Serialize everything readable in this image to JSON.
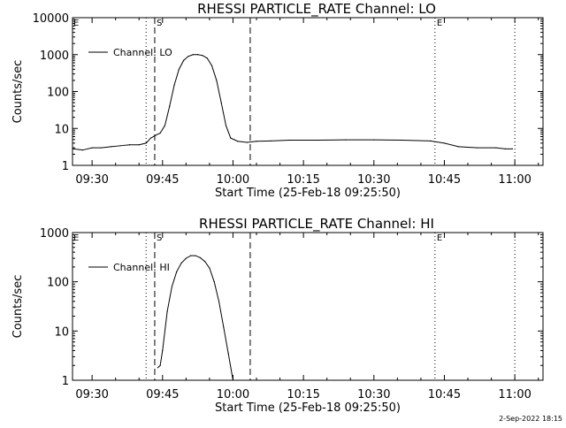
{
  "footer": {
    "timestamp": "2-Sep-2022 18:15"
  },
  "chart_data": [
    {
      "type": "line",
      "title": "RHESSI PARTICLE_RATE Channel: LO",
      "xlabel": "Start Time (25-Feb-18 09:25:50)",
      "ylabel": "Counts/sec",
      "y_scale": "log",
      "xlim": [
        "09:25:50",
        "11:06:00"
      ],
      "ylim": [
        1,
        10000
      ],
      "x_ticks": [
        "09:30",
        "09:45",
        "10:00",
        "10:15",
        "10:30",
        "10:45",
        "11:00"
      ],
      "y_ticks": [
        "1",
        "10",
        "100",
        "1000",
        "10000"
      ],
      "legend": {
        "position": "top-left",
        "label": "Channel: LO"
      },
      "markers": [
        {
          "time": "09:41:30",
          "style": "dotted",
          "label": ""
        },
        {
          "time": "09:43:20",
          "style": "dashed",
          "label": "S"
        },
        {
          "time": "10:03:40",
          "style": "dashed",
          "label": ""
        },
        {
          "time": "10:43:00",
          "style": "dotted",
          "label": "E"
        },
        {
          "time": "11:00:00",
          "style": "dotted",
          "label": ""
        }
      ],
      "series": [
        {
          "name": "Channel: LO",
          "points": [
            [
              "09:26:00",
              2.8
            ],
            [
              "09:28:00",
              2.6
            ],
            [
              "09:30:00",
              3.0
            ],
            [
              "09:32:00",
              3.0
            ],
            [
              "09:34:00",
              3.2
            ],
            [
              "09:36:00",
              3.4
            ],
            [
              "09:38:00",
              3.6
            ],
            [
              "09:40:00",
              3.6
            ],
            [
              "09:41:30",
              4.0
            ],
            [
              "09:42:30",
              5.5
            ],
            [
              "09:43:30",
              6.5
            ],
            [
              "09:44:30",
              7.5
            ],
            [
              "09:45:30",
              12
            ],
            [
              "09:46:30",
              40
            ],
            [
              "09:47:30",
              150
            ],
            [
              "09:48:30",
              400
            ],
            [
              "09:49:30",
              700
            ],
            [
              "09:50:30",
              900
            ],
            [
              "09:51:30",
              1000
            ],
            [
              "09:52:30",
              1000
            ],
            [
              "09:53:30",
              950
            ],
            [
              "09:54:30",
              800
            ],
            [
              "09:55:30",
              500
            ],
            [
              "09:56:30",
              200
            ],
            [
              "09:57:30",
              50
            ],
            [
              "09:58:30",
              12
            ],
            [
              "09:59:30",
              5.5
            ],
            [
              "10:01:00",
              4.5
            ],
            [
              "10:03:00",
              4.2
            ],
            [
              "10:05:00",
              4.5
            ],
            [
              "10:08:00",
              4.6
            ],
            [
              "10:12:00",
              4.8
            ],
            [
              "10:18:00",
              4.8
            ],
            [
              "10:24:00",
              4.9
            ],
            [
              "10:30:00",
              4.9
            ],
            [
              "10:36:00",
              4.8
            ],
            [
              "10:42:00",
              4.6
            ],
            [
              "10:45:00",
              4.0
            ],
            [
              "10:48:00",
              3.2
            ],
            [
              "10:52:00",
              3.0
            ],
            [
              "10:56:00",
              3.0
            ],
            [
              "10:58:00",
              2.8
            ],
            [
              "10:59:30",
              2.8
            ]
          ]
        }
      ]
    },
    {
      "type": "line",
      "title": "RHESSI PARTICLE_RATE Channel: HI",
      "xlabel": "Start Time (25-Feb-18 09:25:50)",
      "ylabel": "Counts/sec",
      "y_scale": "log",
      "xlim": [
        "09:25:50",
        "11:06:00"
      ],
      "ylim": [
        1,
        1000
      ],
      "x_ticks": [
        "09:30",
        "09:45",
        "10:00",
        "10:15",
        "10:30",
        "10:45",
        "11:00"
      ],
      "y_ticks": [
        "1",
        "10",
        "100",
        "1000"
      ],
      "legend": {
        "position": "top-left",
        "label": "Channel: HI"
      },
      "markers": [
        {
          "time": "09:41:30",
          "style": "dotted",
          "label": ""
        },
        {
          "time": "09:43:20",
          "style": "dashed",
          "label": "S"
        },
        {
          "time": "10:03:40",
          "style": "dashed",
          "label": ""
        },
        {
          "time": "10:43:00",
          "style": "dotted",
          "label": "E"
        },
        {
          "time": "11:00:00",
          "style": "dotted",
          "label": ""
        }
      ],
      "series": [
        {
          "name": "Channel: HI",
          "points": [
            [
              "09:44:00",
              1.8
            ],
            [
              "09:44:30",
              2.0
            ],
            [
              "09:45:00",
              4.0
            ],
            [
              "09:46:00",
              25
            ],
            [
              "09:47:00",
              80
            ],
            [
              "09:48:00",
              160
            ],
            [
              "09:49:00",
              240
            ],
            [
              "09:50:00",
              300
            ],
            [
              "09:51:00",
              340
            ],
            [
              "09:52:00",
              340
            ],
            [
              "09:53:00",
              310
            ],
            [
              "09:54:00",
              260
            ],
            [
              "09:55:00",
              190
            ],
            [
              "09:56:00",
              100
            ],
            [
              "09:57:00",
              40
            ],
            [
              "09:58:00",
              12
            ],
            [
              "09:59:00",
              3.5
            ],
            [
              "10:00:00",
              1.0
            ]
          ]
        }
      ]
    }
  ]
}
